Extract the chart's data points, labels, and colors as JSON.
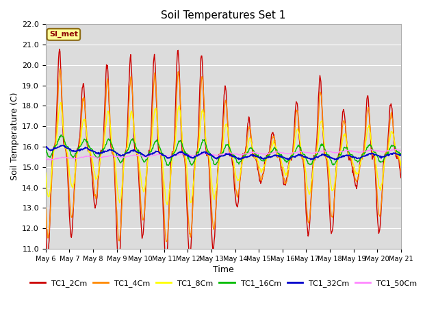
{
  "title": "Soil Temperatures Set 1",
  "xlabel": "Time",
  "ylabel": "Soil Temperature (C)",
  "ylim": [
    11.0,
    22.0
  ],
  "yticks": [
    11.0,
    12.0,
    13.0,
    14.0,
    15.0,
    16.0,
    17.0,
    18.0,
    19.0,
    20.0,
    21.0,
    22.0
  ],
  "background_color": "#dcdcdc",
  "annotation_text": "SI_met",
  "annotation_color": "#8b0000",
  "annotation_bg": "#ffff99",
  "annotation_border": "#8b6914",
  "series_colors": {
    "TC1_2Cm": "#cc0000",
    "TC1_4Cm": "#ff8800",
    "TC1_8Cm": "#ffff00",
    "TC1_16Cm": "#00bb00",
    "TC1_32Cm": "#0000cc",
    "TC1_50Cm": "#ff88ff"
  },
  "n_days": 15,
  "pts_per_day": 48,
  "x_tick_days": [
    0,
    1,
    2,
    3,
    4,
    5,
    6,
    7,
    8,
    9,
    10,
    11,
    12,
    13,
    14,
    15
  ],
  "x_tick_labels": [
    "May 6",
    "May 7",
    "May 8",
    "May 9",
    "May 10",
    "May 11",
    "May 12",
    "May 13",
    "May 14",
    "May 15",
    "May 16",
    "May 17",
    "May 18",
    "May 19",
    "May 20",
    "May 21"
  ]
}
